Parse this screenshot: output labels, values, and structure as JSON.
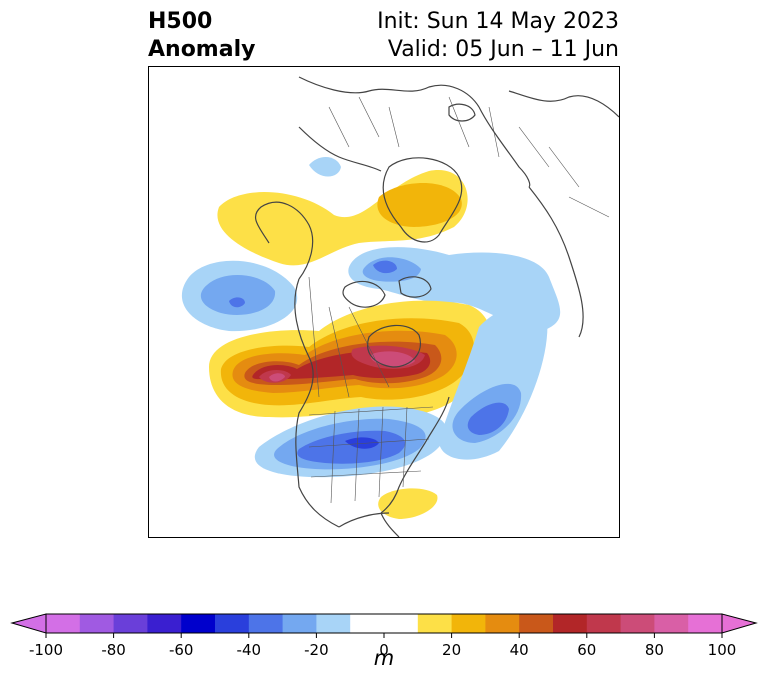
{
  "header": {
    "title_line1": "H500",
    "title_line2": "Anomaly",
    "init_text": "Init: Sun 14 May 2023",
    "valid_text": "Valid: 05 Jun – 11 Jun"
  },
  "colorbar": {
    "unit": "m",
    "ticks": [
      "-100",
      "-80",
      "-60",
      "-40",
      "-20",
      "0",
      "20",
      "40",
      "60",
      "80",
      "100"
    ],
    "levels": [
      -100,
      -90,
      -80,
      -70,
      -60,
      -50,
      -40,
      -30,
      -20,
      -10,
      10,
      20,
      30,
      40,
      50,
      60,
      70,
      80,
      90,
      100
    ],
    "colors": [
      "#d36fe6",
      "#a05ae2",
      "#6a3fd9",
      "#3a1fd0",
      "#0000cc",
      "#2a3fdc",
      "#4d74e8",
      "#74a8f0",
      "#a8d4f7",
      "#ffffff",
      "#fde047",
      "#f2b50a",
      "#e58c10",
      "#c9581a",
      "#b22628",
      "#c0384c",
      "#cc4c78",
      "#d95fa6",
      "#e670d6"
    ],
    "under_color": "#d36fe6",
    "over_color": "#e670d6"
  },
  "map": {
    "region": "North America / Arctic polar stereographic",
    "anomaly_centers": [
      {
        "label": "positive",
        "area": "Canadian Arctic / Hudson Bay",
        "value": 70
      },
      {
        "label": "positive",
        "area": "NE Pacific off British Columbia",
        "value": 75
      },
      {
        "label": "positive",
        "area": "Greenland / Arctic (north)",
        "value": 15
      },
      {
        "label": "positive",
        "area": "Alaska / Bering",
        "value": 15
      },
      {
        "label": "positive",
        "area": "Gulf of Mexico",
        "value": 15
      },
      {
        "label": "negative",
        "area": "Central United States",
        "value": -45
      },
      {
        "label": "negative",
        "area": "North Atlantic",
        "value": -45
      },
      {
        "label": "negative",
        "area": "North Pacific",
        "value": -40
      },
      {
        "label": "negative",
        "area": "Arctic Ocean / Siberia",
        "value": -30
      }
    ]
  }
}
